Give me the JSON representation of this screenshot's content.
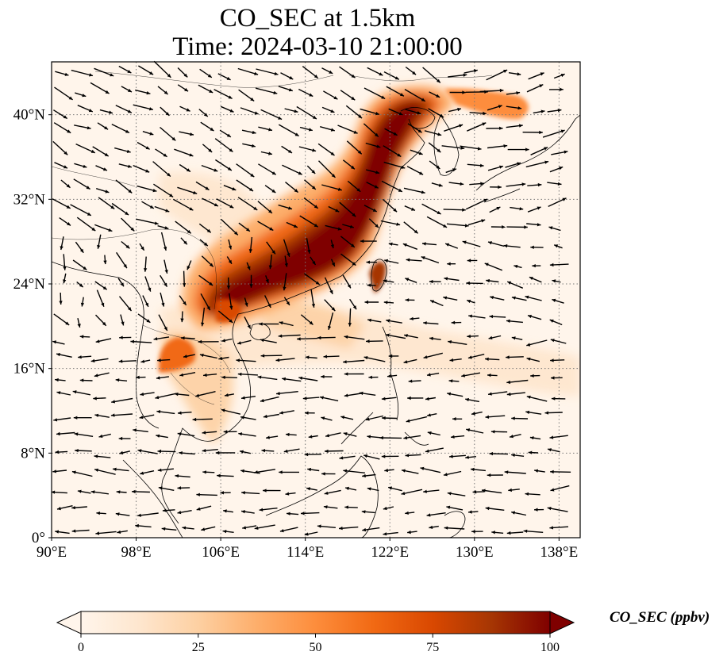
{
  "title": {
    "line1": "CO_SEC at 1.5km",
    "line2": "Time: 2024-03-10 21:00:00"
  },
  "map": {
    "lon_range": [
      90,
      140
    ],
    "lat_range": [
      0,
      45
    ],
    "lon_ticks": [
      {
        "value": 90,
        "label": "90°E"
      },
      {
        "value": 98,
        "label": "98°E"
      },
      {
        "value": 106,
        "label": "106°E"
      },
      {
        "value": 114,
        "label": "114°E"
      },
      {
        "value": 122,
        "label": "122°E"
      },
      {
        "value": 130,
        "label": "130°E"
      },
      {
        "value": 138,
        "label": "138°E"
      }
    ],
    "lat_ticks": [
      {
        "value": 0,
        "label": "0°"
      },
      {
        "value": 8,
        "label": "8°N"
      },
      {
        "value": 16,
        "label": "16°N"
      },
      {
        "value": 24,
        "label": "24°N"
      },
      {
        "value": 32,
        "label": "32°N"
      },
      {
        "value": 40,
        "label": "40°N"
      }
    ],
    "gridlines": true
  },
  "colorbar": {
    "label": "CO_SEC (ppbv)",
    "min": 0,
    "max": 100,
    "ticks": [
      {
        "value": 0,
        "label": "0"
      },
      {
        "value": 25,
        "label": "25"
      },
      {
        "value": 50,
        "label": "50"
      },
      {
        "value": 75,
        "label": "75"
      },
      {
        "value": 100,
        "label": "100"
      }
    ],
    "colors": [
      "#fff5eb",
      "#fee6ce",
      "#fdd0a2",
      "#fdae6b",
      "#fd8d3c",
      "#f16913",
      "#d94801",
      "#a63603",
      "#7f0000"
    ]
  }
}
